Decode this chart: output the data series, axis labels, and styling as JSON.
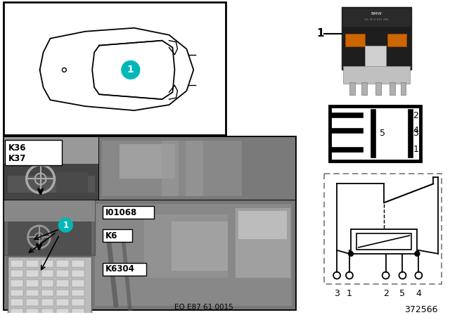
{
  "bg_color": "#ffffff",
  "black": "#000000",
  "white": "#ffffff",
  "teal": "#00B8B8",
  "diagram_number": "372566",
  "ecu_code": "EO E87 61 0015",
  "pin_side_labels": [
    "2",
    "4",
    "5",
    "3",
    "1"
  ],
  "pin_bottom_labels": [
    "3",
    "1",
    "2",
    "5",
    "4"
  ],
  "K_labels": [
    "K36",
    "K37"
  ],
  "other_labels": [
    "I01068",
    "K6",
    "K6304"
  ],
  "photo_dark": "#6a6a6a",
  "photo_mid": "#888888",
  "photo_light": "#aaaaaa",
  "interior_dark": "#555555",
  "interior_mid": "#777777"
}
